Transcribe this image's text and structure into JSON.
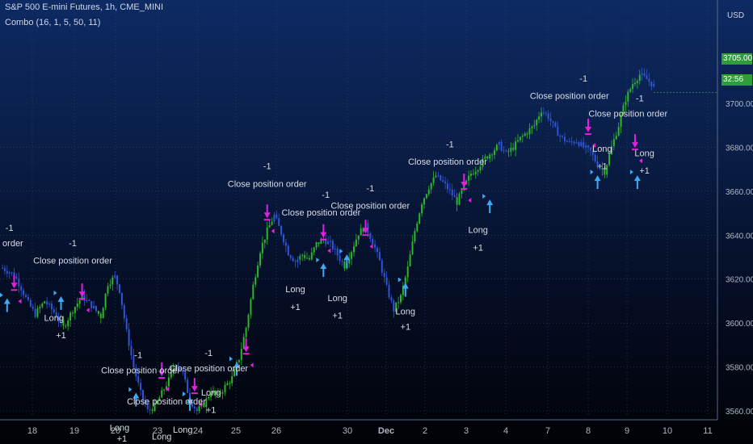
{
  "header": {
    "title": "S&P 500 E-mini Futures, 1h, CME_MINI",
    "subtitle": "Combo (16, 1, 5, 50, 11)"
  },
  "price_scale": {
    "currency": "USD",
    "last_price": "3705.00",
    "countdown": "32:56"
  },
  "colors": {
    "up_candle": "#2fb52a",
    "down_candle": "#2f55d6",
    "long_arrow": "#3fa9f5",
    "close_arrow": "#e020e0",
    "label_text": "#d8dce6",
    "axis_text": "#b0b6c4",
    "price_badge": "#2f9d3a"
  },
  "chart_data": {
    "type": "candlestick",
    "title": "S&P 500 E-mini Futures, 1h, CME_MINI",
    "ylim": [
      3545,
      3725
    ],
    "y_ticks": [
      3560,
      3580,
      3600,
      3620,
      3640,
      3660,
      3680,
      3700
    ],
    "x_tick_labels": [
      "18",
      "19",
      "20",
      "23",
      "24",
      "25",
      "26",
      "30",
      "Dec",
      "2",
      "3",
      "4",
      "7",
      "8",
      "9",
      "10",
      "11"
    ],
    "grid": true,
    "path": [
      [
        0,
        3625
      ],
      [
        5,
        3622
      ],
      [
        8,
        3616
      ],
      [
        11,
        3609
      ],
      [
        14,
        3604
      ],
      [
        18,
        3610
      ],
      [
        22,
        3605
      ],
      [
        26,
        3598
      ],
      [
        30,
        3606
      ],
      [
        34,
        3612
      ],
      [
        38,
        3608
      ],
      [
        42,
        3603
      ],
      [
        45,
        3618
      ],
      [
        48,
        3621
      ],
      [
        50,
        3615
      ],
      [
        53,
        3596
      ],
      [
        56,
        3580
      ],
      [
        59,
        3568
      ],
      [
        62,
        3560
      ],
      [
        65,
        3562
      ],
      [
        68,
        3568
      ],
      [
        71,
        3574
      ],
      [
        74,
        3582
      ],
      [
        77,
        3577
      ],
      [
        80,
        3565
      ],
      [
        83,
        3560
      ],
      [
        86,
        3563
      ],
      [
        89,
        3569
      ],
      [
        92,
        3567
      ],
      [
        95,
        3571
      ],
      [
        98,
        3575
      ],
      [
        101,
        3584
      ],
      [
        104,
        3598
      ],
      [
        107,
        3617
      ],
      [
        110,
        3633
      ],
      [
        113,
        3642
      ],
      [
        116,
        3649
      ],
      [
        119,
        3641
      ],
      [
        122,
        3632
      ],
      [
        125,
        3628
      ],
      [
        128,
        3631
      ],
      [
        131,
        3629
      ],
      [
        134,
        3636
      ],
      [
        137,
        3638
      ],
      [
        140,
        3636
      ],
      [
        143,
        3631
      ],
      [
        146,
        3626
      ],
      [
        149,
        3633
      ],
      [
        152,
        3641
      ],
      [
        155,
        3644
      ],
      [
        158,
        3637
      ],
      [
        161,
        3628
      ],
      [
        164,
        3616
      ],
      [
        167,
        3606
      ],
      [
        170,
        3612
      ],
      [
        173,
        3625
      ],
      [
        176,
        3642
      ],
      [
        179,
        3655
      ],
      [
        182,
        3662
      ],
      [
        185,
        3667
      ],
      [
        188,
        3664
      ],
      [
        191,
        3660
      ],
      [
        194,
        3655
      ],
      [
        197,
        3662
      ],
      [
        200,
        3668
      ],
      [
        203,
        3671
      ],
      [
        206,
        3675
      ],
      [
        209,
        3678
      ],
      [
        212,
        3681
      ],
      [
        215,
        3677
      ],
      [
        218,
        3680
      ],
      [
        221,
        3684
      ],
      [
        224,
        3687
      ],
      [
        227,
        3690
      ],
      [
        230,
        3697
      ],
      [
        233,
        3694
      ],
      [
        236,
        3688
      ],
      [
        239,
        3684
      ],
      [
        242,
        3682
      ],
      [
        245,
        3683
      ],
      [
        248,
        3680
      ],
      [
        251,
        3678
      ],
      [
        254,
        3672
      ],
      [
        257,
        3669
      ],
      [
        260,
        3680
      ],
      [
        263,
        3690
      ],
      [
        266,
        3702
      ],
      [
        269,
        3709
      ],
      [
        272,
        3713
      ],
      [
        275,
        3711
      ],
      [
        278,
        3708
      ]
    ],
    "signals": [
      {
        "type": "long",
        "x": 2,
        "price": 3605
      },
      {
        "type": "long",
        "x": 25,
        "price": 3606,
        "label": "Long"
      },
      {
        "type": "long",
        "x": 57,
        "price": 3562,
        "label": "Long"
      },
      {
        "type": "long",
        "x": 80,
        "price": 3560,
        "label": "Long"
      },
      {
        "type": "long",
        "x": 100,
        "price": 3576,
        "label": "Long"
      },
      {
        "type": "long",
        "x": 137,
        "price": 3621,
        "label": "Long"
      },
      {
        "type": "long",
        "x": 147,
        "price": 3625,
        "label": "Long"
      },
      {
        "type": "long",
        "x": 172,
        "price": 3612,
        "label": "Long"
      },
      {
        "type": "long",
        "x": 208,
        "price": 3650,
        "label": "Long"
      },
      {
        "type": "long",
        "x": 254,
        "price": 3661,
        "label": "Long"
      },
      {
        "type": "long",
        "x": 271,
        "price": 3661,
        "label": "Long"
      },
      {
        "type": "close",
        "x": 5,
        "price": 3622
      },
      {
        "type": "close",
        "x": 34,
        "price": 3618
      },
      {
        "type": "close",
        "x": 68,
        "price": 3582
      },
      {
        "type": "close",
        "x": 82,
        "price": 3575
      },
      {
        "type": "close",
        "x": 104,
        "price": 3593
      },
      {
        "type": "close",
        "x": 113,
        "price": 3654
      },
      {
        "type": "close",
        "x": 137,
        "price": 3645
      },
      {
        "type": "close",
        "x": 155,
        "price": 3647
      },
      {
        "type": "close",
        "x": 197,
        "price": 3668
      },
      {
        "type": "close",
        "x": 250,
        "price": 3693
      },
      {
        "type": "close",
        "x": 270,
        "price": 3686
      }
    ],
    "texts": [
      {
        "x": 3,
        "price": 3642,
        "text": "-1"
      },
      {
        "x": -8,
        "price": 3635,
        "text": "Close position order"
      },
      {
        "x": 30,
        "price": 3635,
        "text": "-1"
      },
      {
        "x": 30,
        "price": 3627,
        "text": "Close position order"
      },
      {
        "x": 22,
        "price": 3601,
        "text": "Long"
      },
      {
        "x": 25,
        "price": 3593,
        "text": "+1"
      },
      {
        "x": 58,
        "price": 3584,
        "text": "-1"
      },
      {
        "x": 59,
        "price": 3577,
        "text": "Close position order"
      },
      {
        "x": 70,
        "price": 3563,
        "text": "Close position order"
      },
      {
        "x": 50,
        "price": 3551,
        "text": "Long"
      },
      {
        "x": 51,
        "price": 3546,
        "text": "+1"
      },
      {
        "x": 68,
        "price": 3547,
        "text": "Long"
      },
      {
        "x": 77,
        "price": 3550,
        "text": "Long"
      },
      {
        "x": 88,
        "price": 3585,
        "text": "-1"
      },
      {
        "x": 88,
        "price": 3578,
        "text": "Close position order"
      },
      {
        "x": 89,
        "price": 3567,
        "text": "Long"
      },
      {
        "x": 89,
        "price": 3559,
        "text": "+1"
      },
      {
        "x": 113,
        "price": 3670,
        "text": "-1"
      },
      {
        "x": 113,
        "price": 3662,
        "text": "Close position order"
      },
      {
        "x": 138,
        "price": 3657,
        "text": "-1"
      },
      {
        "x": 136,
        "price": 3649,
        "text": "Close position order"
      },
      {
        "x": 157,
        "price": 3660,
        "text": "-1"
      },
      {
        "x": 157,
        "price": 3652,
        "text": "Close position order"
      },
      {
        "x": 125,
        "price": 3614,
        "text": "Long"
      },
      {
        "x": 125,
        "price": 3606,
        "text": "+1"
      },
      {
        "x": 143,
        "price": 3610,
        "text": "Long"
      },
      {
        "x": 143,
        "price": 3602,
        "text": "+1"
      },
      {
        "x": 172,
        "price": 3604,
        "text": "Long"
      },
      {
        "x": 172,
        "price": 3597,
        "text": "+1"
      },
      {
        "x": 191,
        "price": 3680,
        "text": "-1"
      },
      {
        "x": 190,
        "price": 3672,
        "text": "Close position order"
      },
      {
        "x": 203,
        "price": 3641,
        "text": "Long"
      },
      {
        "x": 203,
        "price": 3633,
        "text": "+1"
      },
      {
        "x": 248,
        "price": 3710,
        "text": "-1"
      },
      {
        "x": 242,
        "price": 3702,
        "text": "Close position order"
      },
      {
        "x": 272,
        "price": 3701,
        "text": "-1"
      },
      {
        "x": 267,
        "price": 3694,
        "text": "Close position order"
      },
      {
        "x": 256,
        "price": 3678,
        "text": "Long"
      },
      {
        "x": 256,
        "price": 3670,
        "text": "+1"
      },
      {
        "x": 274,
        "price": 3676,
        "text": "Long"
      },
      {
        "x": 274,
        "price": 3668,
        "text": "+1"
      }
    ]
  }
}
